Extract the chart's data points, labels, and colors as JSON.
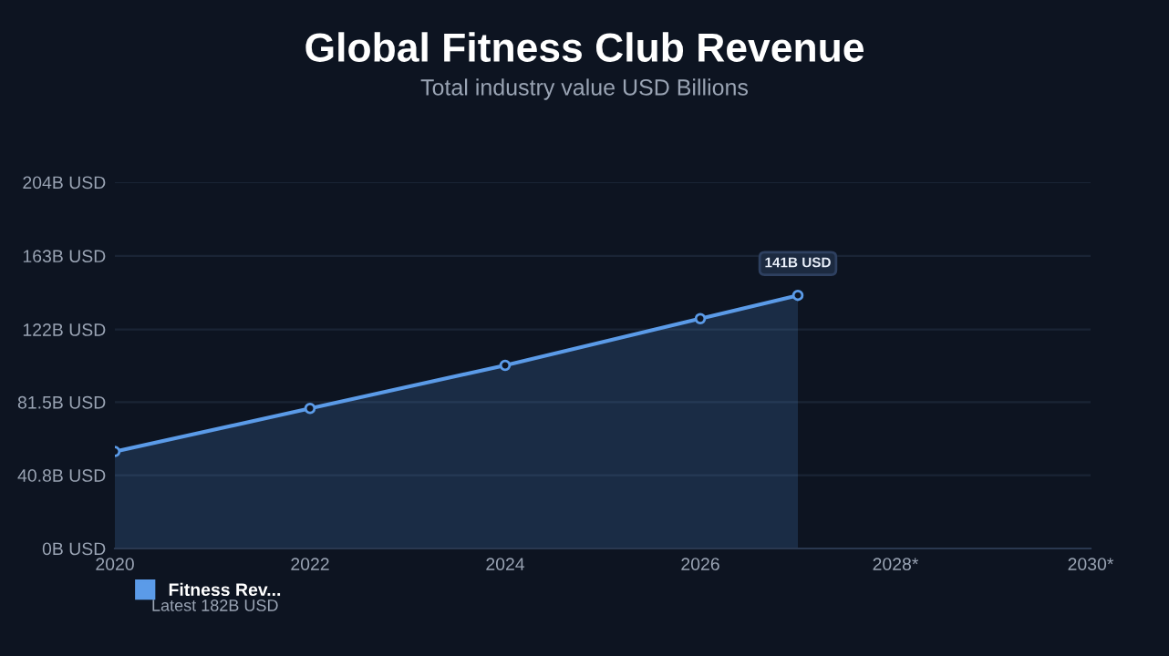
{
  "chart_data": {
    "type": "area",
    "title": "Global Fitness Club Revenue",
    "subtitle": "Total industry value USD Billions",
    "x": [
      2020,
      2022,
      2024,
      2026,
      2027
    ],
    "series": [
      {
        "name": "Fitness Rev...",
        "color": "#5b9be8",
        "values": [
          54,
          78,
          102,
          128,
          141
        ]
      }
    ],
    "xlim": [
      2020,
      2030
    ],
    "xticks": [
      2020,
      2022,
      2024,
      2026,
      {
        "value": 2028,
        "label": "2028*"
      },
      {
        "value": 2030,
        "label": "2030*"
      }
    ],
    "ylim": [
      0,
      204
    ],
    "yticks": [
      {
        "value": 0,
        "label": "0B USD"
      },
      {
        "value": 40.8,
        "label": "40.8B USD"
      },
      {
        "value": 81.5,
        "label": "81.5B USD"
      },
      {
        "value": 122,
        "label": "122B USD"
      },
      {
        "value": 163,
        "label": "163B USD"
      },
      {
        "value": 204,
        "label": "204B USD"
      }
    ],
    "grid": "y",
    "marker": "circle",
    "line_style": "solid",
    "legend": "bottom left",
    "annotations": [
      {
        "text": "141B USD",
        "x": 2027,
        "y": 141
      },
      "Latest 182B USD"
    ]
  }
}
